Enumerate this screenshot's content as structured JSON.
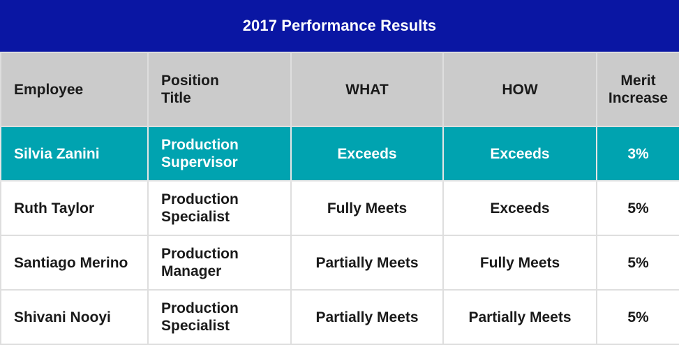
{
  "title": "2017 Performance Results",
  "colors": {
    "title_bg": "#0a16a3",
    "header_bg": "#cbcbcb",
    "highlight_bg": "#00a3b0"
  },
  "headers": {
    "employee": "Employee",
    "position_line1": "Position",
    "position_line2": "Title",
    "what": "WHAT",
    "how": "HOW",
    "merit_line1": "Merit",
    "merit_line2": "Increase"
  },
  "rows": [
    {
      "employee": "Silvia Zanini",
      "position_line1": "Production",
      "position_line2": "Supervisor",
      "what": "Exceeds",
      "how": "Exceeds",
      "merit": "3%",
      "highlighted": true
    },
    {
      "employee": "Ruth Taylor",
      "position_line1": "Production",
      "position_line2": "Specialist",
      "what": "Fully Meets",
      "how": "Exceeds",
      "merit": "5%",
      "highlighted": false
    },
    {
      "employee": "Santiago Merino",
      "position_line1": "Production",
      "position_line2": "Manager",
      "what": "Partially Meets",
      "how": "Fully Meets",
      "merit": "5%",
      "highlighted": false
    },
    {
      "employee": "Shivani Nooyi",
      "position_line1": "Production",
      "position_line2": "Specialist",
      "what": "Partially Meets",
      "how": "Partially Meets",
      "merit": "5%",
      "highlighted": false
    }
  ]
}
